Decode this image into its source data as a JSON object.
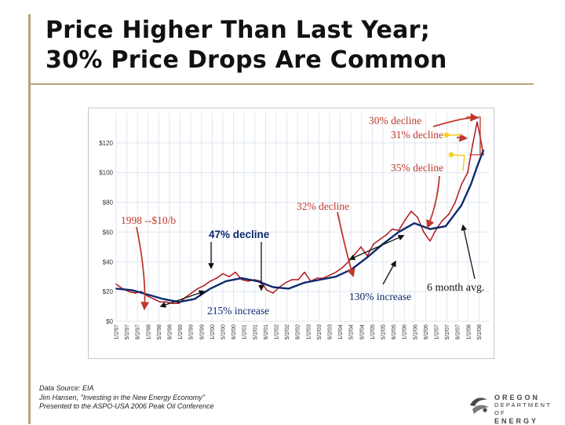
{
  "slide": {
    "title_line1": "Price Higher Than Last Year;",
    "title_line2": "30% Price Drops Are Common",
    "source_line1": "Data Source: EIA",
    "source_line2": "Jim Hansen, \"Investing in the New Energy Economy\"",
    "source_line3": "Presented to the ASPO-USA 2006 Peak Oil Conference",
    "logo_line1": "OREGON",
    "logo_line2": "DEPARTMENT OF",
    "logo_line3": "ENERGY"
  },
  "colors": {
    "price": "#b5171c",
    "average": "#0d2a6e",
    "annotation": "#c0392b",
    "arrow": "#111111",
    "highlight": "#f2d21d",
    "grid": "#dfe6ef",
    "plot_bg": "#ffffff"
  },
  "chart_data": {
    "type": "line",
    "title": "",
    "xlabel": "",
    "ylabel": "",
    "ylim": [
      0,
      140
    ],
    "yticks": [
      0,
      20,
      40,
      60,
      80,
      100,
      120
    ],
    "ytick_labels": [
      "$0",
      "$20",
      "$40",
      "$60",
      "$80",
      "$100",
      "$120"
    ],
    "xlim": [
      1997.0,
      2008.9
    ],
    "xtick_labels": [
      "1/2/97",
      "5/2/97",
      "9/2/97",
      "1/2/98",
      "5/2/98",
      "9/2/98",
      "1/2/99",
      "5/2/99",
      "9/2/99",
      "1/2/00",
      "5/2/00",
      "9/2/00",
      "1/2/01",
      "5/2/01",
      "9/2/01",
      "1/2/02",
      "5/2/02",
      "9/2/02",
      "1/2/03",
      "5/2/03",
      "9/2/03",
      "1/2/04",
      "5/2/04",
      "9/2/04",
      "1/2/05",
      "5/2/05",
      "9/2/05",
      "1/2/06",
      "5/2/06",
      "9/2/06",
      "1/2/07",
      "5/2/07",
      "9/2/07",
      "1/2/08",
      "5/2/08"
    ],
    "series": [
      {
        "name": "",
        "role": "price",
        "x": [
          1997.0,
          1997.2,
          1997.4,
          1997.6,
          1997.8,
          1998.0,
          1998.2,
          1998.4,
          1998.6,
          1998.8,
          1999.0,
          1999.2,
          1999.4,
          1999.6,
          1999.8,
          2000.0,
          2000.2,
          2000.4,
          2000.6,
          2000.8,
          2001.0,
          2001.2,
          2001.4,
          2001.6,
          2001.8,
          2002.0,
          2002.2,
          2002.4,
          2002.6,
          2002.8,
          2003.0,
          2003.2,
          2003.4,
          2003.6,
          2003.8,
          2004.0,
          2004.2,
          2004.4,
          2004.6,
          2004.8,
          2005.0,
          2005.2,
          2005.4,
          2005.6,
          2005.8,
          2006.0,
          2006.2,
          2006.4,
          2006.6,
          2006.8,
          2007.0,
          2007.2,
          2007.4,
          2007.6,
          2007.8,
          2008.0,
          2008.2,
          2008.35,
          2008.5,
          2008.6,
          2008.7
        ],
        "values": [
          25,
          22,
          20,
          19,
          20,
          17,
          15,
          13,
          13,
          12,
          12,
          16,
          19,
          22,
          24,
          27,
          29,
          32,
          30,
          33,
          28,
          27,
          28,
          27,
          21,
          19,
          23,
          26,
          28,
          28,
          33,
          27,
          29,
          29,
          31,
          33,
          36,
          40,
          45,
          50,
          44,
          52,
          55,
          58,
          62,
          61,
          68,
          74,
          70,
          60,
          54,
          62,
          68,
          72,
          80,
          92,
          100,
          118,
          134,
          124,
          112
        ]
      },
      {
        "name": "6 month avg.",
        "role": "average",
        "x": [
          1997.0,
          1997.5,
          1998.0,
          1998.5,
          1999.0,
          1999.5,
          2000.0,
          2000.5,
          2001.0,
          2001.5,
          2002.0,
          2002.5,
          2003.0,
          2003.5,
          2004.0,
          2004.5,
          2005.0,
          2005.5,
          2006.0,
          2006.5,
          2007.0,
          2007.5,
          2008.0,
          2008.3,
          2008.5,
          2008.7
        ],
        "values": [
          22,
          21,
          18,
          15,
          13,
          15,
          22,
          27,
          29,
          27,
          23,
          22,
          26,
          28,
          30,
          35,
          43,
          52,
          60,
          66,
          62,
          64,
          78,
          92,
          104,
          115
        ]
      }
    ],
    "annotations": [
      {
        "text": "30% decline"
      },
      {
        "text": "31% decline"
      },
      {
        "text": "35% decline"
      },
      {
        "text": "1998 --$10/b"
      },
      {
        "text": "47% decline"
      },
      {
        "text": "32% decline"
      },
      {
        "text": "215% increase"
      },
      {
        "text": "130% increase"
      },
      {
        "text": "6 month avg."
      }
    ]
  }
}
